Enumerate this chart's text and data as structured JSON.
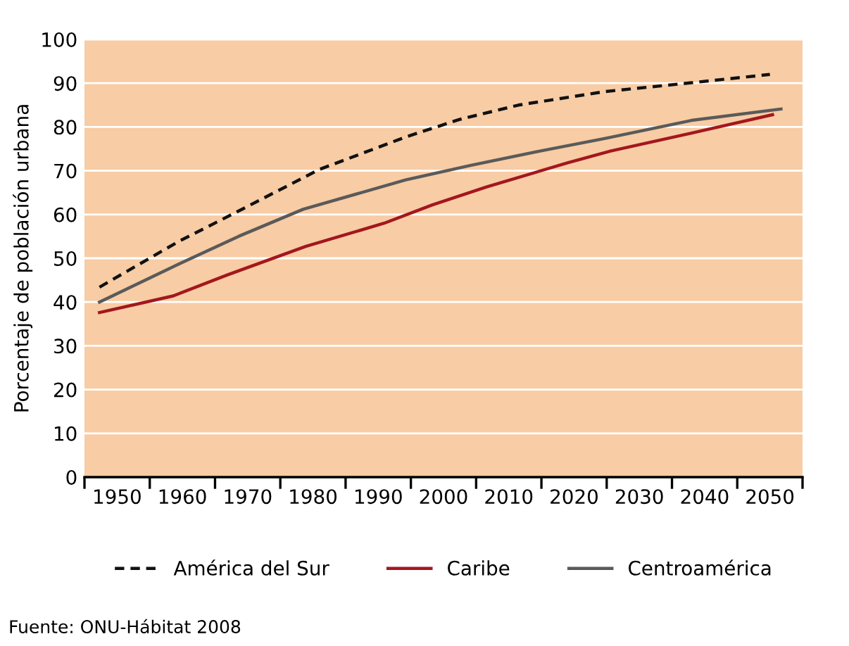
{
  "chart_data": {
    "type": "line",
    "ylabel": "Porcentaje de población urbana",
    "xlim": [
      1945,
      2055
    ],
    "ylim": [
      0,
      100
    ],
    "xticks": [
      {
        "value": 1945,
        "label": null
      },
      1950,
      {
        "value": 1955,
        "label": null
      },
      1960,
      {
        "value": 1965,
        "label": null
      },
      1970,
      {
        "value": 1975,
        "label": null
      },
      1980,
      {
        "value": 1985,
        "label": null
      },
      1990,
      {
        "value": 1995,
        "label": null
      },
      2000,
      {
        "value": 2005,
        "label": null
      },
      2010,
      {
        "value": 2015,
        "label": null
      },
      2020,
      {
        "value": 2025,
        "label": null
      },
      2030,
      {
        "value": 2035,
        "label": null
      },
      2040,
      {
        "value": 2045,
        "label": null
      },
      2050,
      {
        "value": 2055,
        "label": null
      }
    ],
    "yticks": [
      0,
      10,
      20,
      30,
      40,
      50,
      60,
      70,
      80,
      90,
      100
    ],
    "grid": "y",
    "legend": "bottom",
    "marker": "none",
    "series": [
      {
        "name": "América del Sur",
        "color": "#111111",
        "line_style": "dashed",
        "x": [
          1947.3,
          1959.5,
          1967.7,
          1981,
          1994.2,
          2002.4,
          2011.5,
          2024.8,
          2038,
          2050
        ],
        "values": [
          43.4,
          53.9,
          60.1,
          70.3,
          77.7,
          81.7,
          85.0,
          88.1,
          90.1,
          92.0
        ]
      },
      {
        "name": "Caribe",
        "color": "#a3171e",
        "line_style": "solid",
        "x": [
          1947.3,
          1958.6,
          1966.9,
          1978.9,
          1990.9,
          1998.3,
          2006.6,
          2019,
          2025.6,
          2038,
          2050.4
        ],
        "values": [
          37.6,
          41.4,
          46.2,
          52.7,
          58.0,
          62.2,
          66.3,
          71.8,
          74.5,
          78.6,
          82.8
        ]
      },
      {
        "name": "Centroamérica",
        "color": "#5a5a5a",
        "line_style": "solid",
        "x": [
          1947.3,
          1959.5,
          1968.6,
          1978.5,
          1994.2,
          2004.1,
          2014.8,
          2024.8,
          2038,
          2051.7
        ],
        "values": [
          40.0,
          48.7,
          55.0,
          61.2,
          67.9,
          71.2,
          74.5,
          77.4,
          81.5,
          84.1
        ]
      }
    ],
    "annotations": [
      "Fuente: ONU-Hábitat 2008"
    ]
  }
}
